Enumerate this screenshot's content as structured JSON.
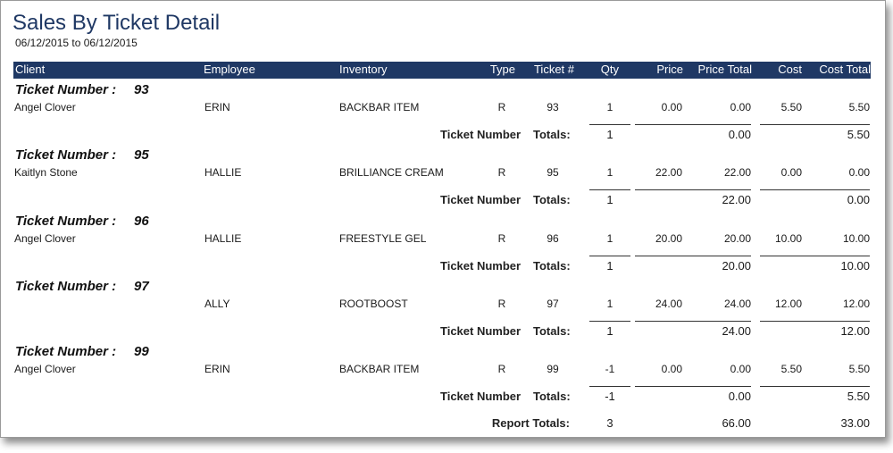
{
  "report": {
    "title": "Sales By Ticket Detail",
    "date_range": "06/12/2015 to 06/12/2015"
  },
  "columns": {
    "client": "Client",
    "employee": "Employee",
    "inventory": "Inventory",
    "type": "Type",
    "ticket": "Ticket #",
    "qty": "Qty",
    "price": "Price",
    "price_total": "Price Total",
    "cost": "Cost",
    "cost_total": "Cost Total"
  },
  "labels": {
    "ticket_number": "Ticket Number :",
    "group_totals_a": "Ticket Number",
    "group_totals_b": "Totals:",
    "report_totals": "Report Totals:"
  },
  "tickets": [
    {
      "number": "93",
      "row": {
        "client": "Angel Clover",
        "employee": "ERIN",
        "inventory": "BACKBAR ITEM",
        "type": "R",
        "ticket": "93",
        "qty": "1",
        "price": "0.00",
        "price_total": "0.00",
        "cost": "5.50",
        "cost_total": "5.50"
      },
      "totals": {
        "qty": "1",
        "price_total": "0.00",
        "cost_total": "5.50"
      }
    },
    {
      "number": "95",
      "row": {
        "client": "Kaitlyn Stone",
        "employee": "HALLIE",
        "inventory": "BRILLIANCE CREAM",
        "type": "R",
        "ticket": "95",
        "qty": "1",
        "price": "22.00",
        "price_total": "22.00",
        "cost": "0.00",
        "cost_total": "0.00"
      },
      "totals": {
        "qty": "1",
        "price_total": "22.00",
        "cost_total": "0.00"
      }
    },
    {
      "number": "96",
      "row": {
        "client": "Angel Clover",
        "employee": "HALLIE",
        "inventory": "FREESTYLE GEL",
        "type": "R",
        "ticket": "96",
        "qty": "1",
        "price": "20.00",
        "price_total": "20.00",
        "cost": "10.00",
        "cost_total": "10.00"
      },
      "totals": {
        "qty": "1",
        "price_total": "20.00",
        "cost_total": "10.00"
      }
    },
    {
      "number": "97",
      "row": {
        "client": "",
        "employee": "ALLY",
        "inventory": "ROOTBOOST",
        "type": "R",
        "ticket": "97",
        "qty": "1",
        "price": "24.00",
        "price_total": "24.00",
        "cost": "12.00",
        "cost_total": "12.00"
      },
      "totals": {
        "qty": "1",
        "price_total": "24.00",
        "cost_total": "12.00"
      }
    },
    {
      "number": "99",
      "row": {
        "client": "Angel Clover",
        "employee": "ERIN",
        "inventory": "BACKBAR ITEM",
        "type": "R",
        "ticket": "99",
        "qty": "-1",
        "price": "0.00",
        "price_total": "0.00",
        "cost": "5.50",
        "cost_total": "5.50"
      },
      "totals": {
        "qty": "-1",
        "price_total": "0.00",
        "cost_total": "5.50"
      }
    }
  ],
  "report_totals": {
    "qty": "3",
    "price_total": "66.00",
    "cost_total": "33.00"
  }
}
